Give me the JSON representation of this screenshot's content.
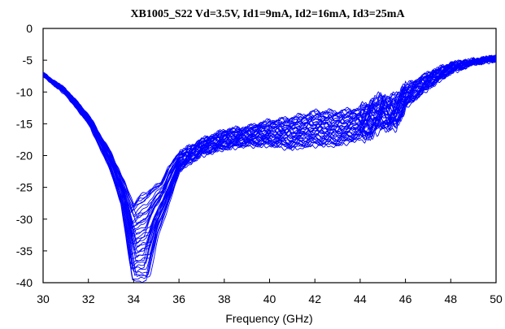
{
  "chart_data": {
    "type": "line",
    "title": "XB1005_S22  Vd=3.5V, Id1=9mA, Id2=16mA, Id3=25mA",
    "xlabel": "Frequency (GHz)",
    "ylabel": "",
    "xlim": [
      30,
      50
    ],
    "ylim": [
      -40,
      0
    ],
    "xticks": [
      30,
      32,
      34,
      36,
      38,
      40,
      42,
      44,
      46,
      48,
      50
    ],
    "yticks": [
      0,
      -5,
      -10,
      -15,
      -20,
      -25,
      -30,
      -35,
      -40
    ],
    "grid": false,
    "legend": "none",
    "series_color": "#0000ff",
    "series_count": 40,
    "x": [
      30,
      31,
      32,
      33,
      33.5,
      34,
      34.3,
      34.6,
      35,
      35.3,
      35.6,
      36,
      37,
      38,
      39,
      40,
      41,
      42,
      43,
      44,
      44.5,
      45,
      45.3,
      45.6,
      46,
      47,
      48,
      49,
      50
    ],
    "envelope_upper": [
      -7,
      -9.5,
      -13.5,
      -19.5,
      -23.5,
      -27.5,
      -26,
      -25.5,
      -24.5,
      -24,
      -21.5,
      -19.5,
      -17.5,
      -16,
      -15.5,
      -14.5,
      -14,
      -13,
      -13,
      -12.5,
      -11.5,
      -10.5,
      -11,
      -10.5,
      -9,
      -7,
      -5.5,
      -5,
      -4.5
    ],
    "envelope_lower": [
      -7.5,
      -10.5,
      -15,
      -22.5,
      -28,
      -40,
      -40,
      -40,
      -33,
      -30,
      -27,
      -22.5,
      -20,
      -19,
      -18.5,
      -18.5,
      -19,
      -18.5,
      -18.5,
      -17.5,
      -17,
      -15.5,
      -16,
      -15.5,
      -12.5,
      -9.5,
      -7,
      -5.5,
      -5
    ]
  }
}
